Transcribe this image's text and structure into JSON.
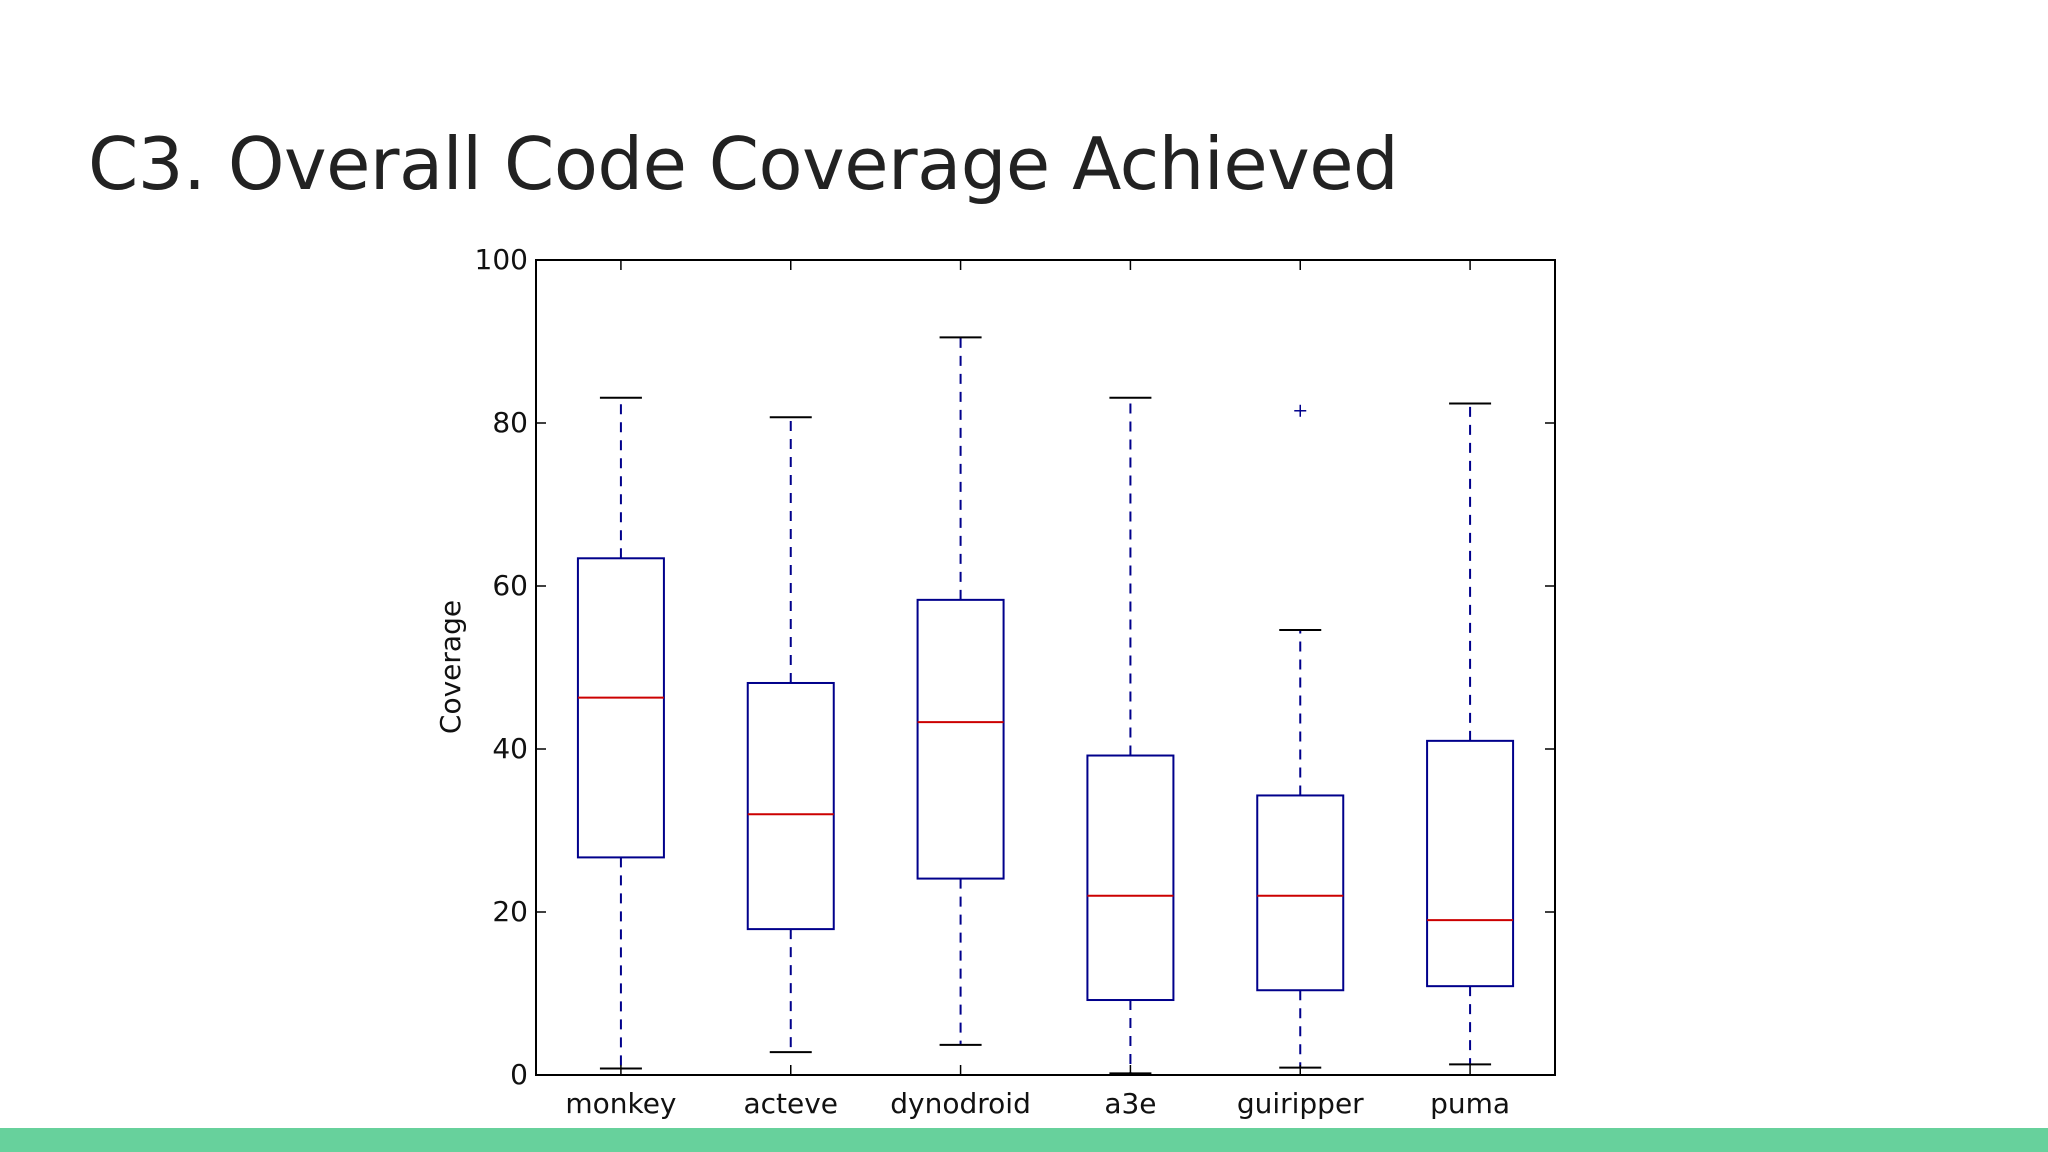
{
  "slide": {
    "title": "C3. Overall Code Coverage Achieved",
    "accent_bar_color": "#67d19c"
  },
  "chart_data": {
    "type": "box",
    "ylabel": "Coverage",
    "ylim": [
      0,
      100
    ],
    "yticks": [
      "0",
      "20",
      "40",
      "60",
      "80",
      "100"
    ],
    "categories": [
      "monkey",
      "acteve",
      "dynodroid",
      "a3e",
      "guiripper",
      "puma"
    ],
    "boxes": [
      {
        "name": "monkey",
        "whisker_low": 0.8,
        "q1": 26.7,
        "median": 46.3,
        "q3": 63.4,
        "whisker_high": 83.1,
        "outliers": []
      },
      {
        "name": "acteve",
        "whisker_low": 2.8,
        "q1": 17.9,
        "median": 32.0,
        "q3": 48.1,
        "whisker_high": 80.7,
        "outliers": []
      },
      {
        "name": "dynodroid",
        "whisker_low": 3.7,
        "q1": 24.1,
        "median": 43.3,
        "q3": 58.3,
        "whisker_high": 90.5,
        "outliers": []
      },
      {
        "name": "a3e",
        "whisker_low": 0.2,
        "q1": 9.2,
        "median": 22.0,
        "q3": 39.2,
        "whisker_high": 83.1,
        "outliers": []
      },
      {
        "name": "guiripper",
        "whisker_low": 0.9,
        "q1": 10.4,
        "median": 22.0,
        "q3": 34.3,
        "whisker_high": 54.6,
        "outliers": [
          81.5
        ]
      },
      {
        "name": "puma",
        "whisker_low": 1.3,
        "q1": 10.9,
        "median": 19.0,
        "q3": 41.0,
        "whisker_high": 82.4,
        "outliers": []
      }
    ],
    "colors": {
      "box": "#00008b",
      "median": "#cc0000",
      "whisker": "#00008b",
      "cap": "#000000",
      "axes": "#000000"
    },
    "grid": false
  }
}
